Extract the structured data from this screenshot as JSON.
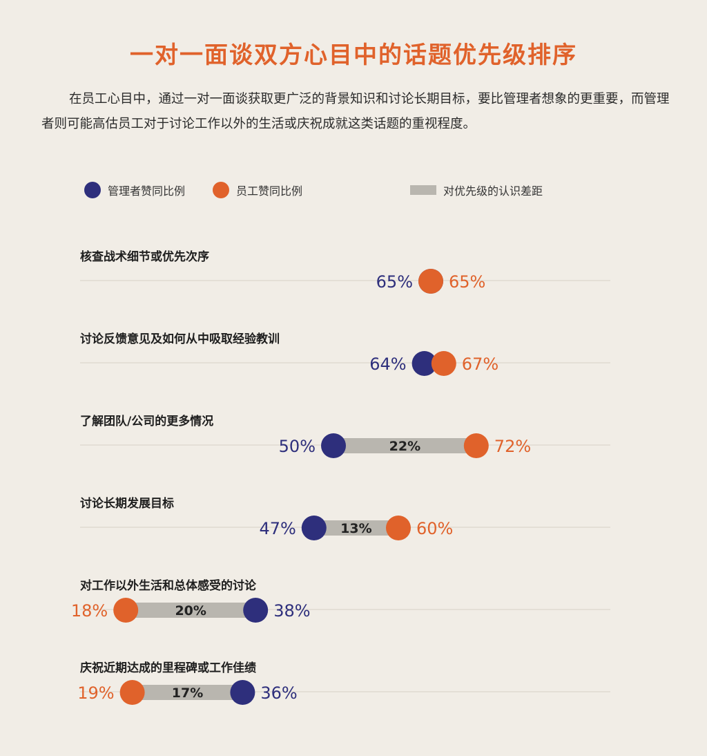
{
  "title": "一对一面谈双方心目中的话题优先级排序",
  "intro": "在员工心目中，通过一对一面谈获取更广泛的背景知识和讨论长期目标，要比管理者想象的更重要，而管理者则可能高估员工对于讨论工作以外的生活或庆祝成就这类话题的重视程度。",
  "legend": {
    "manager": "管理者赞同比例",
    "employee": "员工赞同比例",
    "gap": "对优先级的认识差距"
  },
  "colors": {
    "manager": "#2e2f7c",
    "employee": "#e0622b",
    "gap": "#b9b6af",
    "background": "#f1ede6",
    "guide": "#e4dfd6"
  },
  "chart_data": {
    "type": "dot-range",
    "unit": "%",
    "series": [
      {
        "name": "管理者赞同比例",
        "values": [
          65,
          64,
          50,
          47,
          38,
          36
        ]
      },
      {
        "name": "员工赞同比例",
        "values": [
          65,
          67,
          72,
          60,
          18,
          19
        ]
      }
    ],
    "rows": [
      {
        "label": "核查战术细节或优先次序",
        "manager": 65,
        "employee": 65,
        "gap": null
      },
      {
        "label": "讨论反馈意见及如何从中吸取经验教训",
        "manager": 64,
        "employee": 67,
        "gap": null
      },
      {
        "label": "了解团队/公司的更多情况",
        "manager": 50,
        "employee": 72,
        "gap": 22
      },
      {
        "label": "讨论长期发展目标",
        "manager": 47,
        "employee": 60,
        "gap": 13
      },
      {
        "label": "对工作以外生活和总体感受的讨论",
        "manager": 38,
        "employee": 18,
        "gap": 20
      },
      {
        "label": "庆祝近期达成的里程碑或工作佳绩",
        "manager": 36,
        "employee": 19,
        "gap": 17
      }
    ]
  }
}
